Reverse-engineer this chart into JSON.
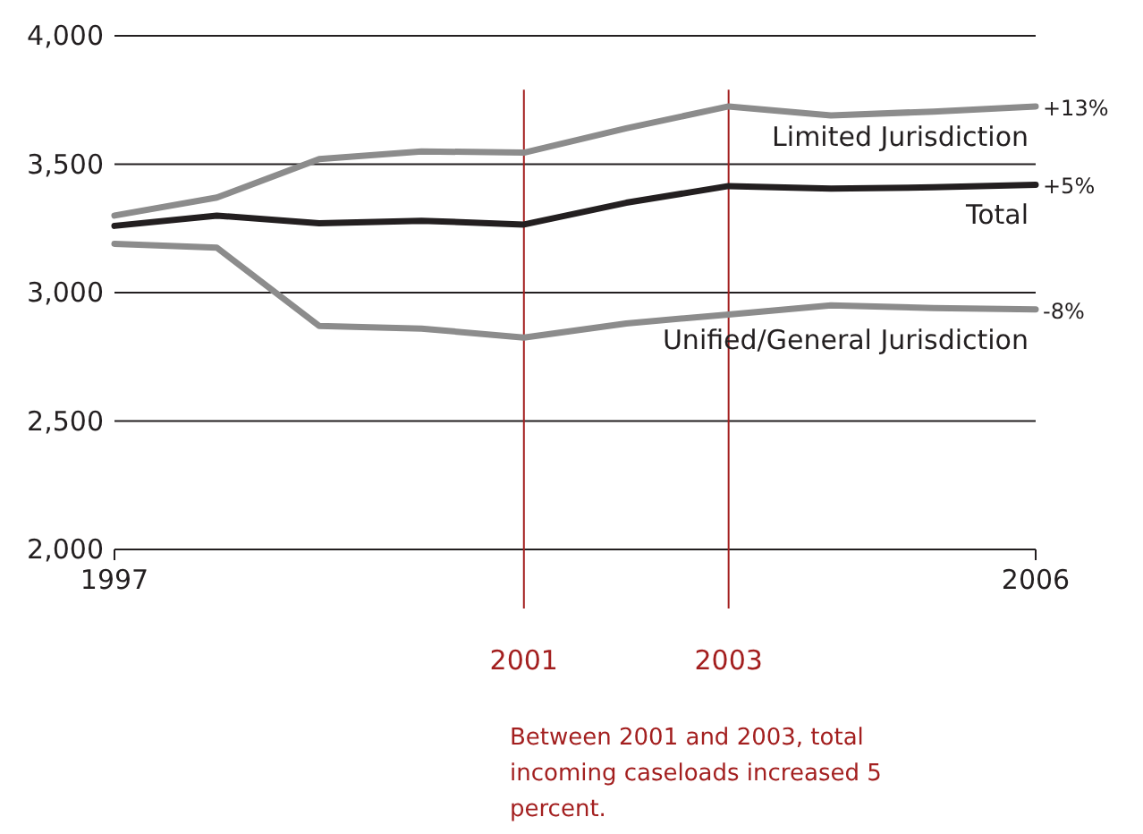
{
  "chart_data": {
    "type": "line",
    "x": [
      1997,
      1998,
      1999,
      2000,
      2001,
      2002,
      2003,
      2004,
      2005,
      2006
    ],
    "series": [
      {
        "name": "Limited Jurisdiction",
        "color": "#8c8c8c",
        "values": [
          3300,
          3370,
          3520,
          3550,
          3545,
          3640,
          3725,
          3690,
          3705,
          3725
        ]
      },
      {
        "name": "Total",
        "color": "#231f20",
        "values": [
          3260,
          3300,
          3270,
          3280,
          3265,
          3350,
          3415,
          3405,
          3410,
          3420
        ]
      },
      {
        "name": "Unified/General Jurisdiction",
        "color": "#8c8c8c",
        "values": [
          3190,
          3175,
          2870,
          2860,
          2825,
          2880,
          2915,
          2950,
          2940,
          2935
        ]
      }
    ],
    "xlim": [
      1997,
      2006
    ],
    "xticks": [
      1997,
      2006
    ],
    "ylim": [
      2000,
      4000
    ],
    "yticks": [
      {
        "value": 2000,
        "label": "2,000"
      },
      {
        "value": 2500,
        "label": "2,500"
      },
      {
        "value": 3000,
        "label": "3,000"
      },
      {
        "value": 3500,
        "label": "3,500"
      },
      {
        "value": 4000,
        "label": "4,000"
      }
    ],
    "grid": "y",
    "marker": "none",
    "line_style": "solid",
    "ref_lines": [
      {
        "axis": "x",
        "value": 2001,
        "label": "2001",
        "color": "#a31f1f"
      },
      {
        "axis": "x",
        "value": 2003,
        "label": "2003",
        "color": "#a31f1f"
      }
    ],
    "annotations": [
      "+13%",
      "+5%",
      "-8%",
      "Between 2001 and 2003, total incoming caseloads increased 5 percent."
    ]
  }
}
